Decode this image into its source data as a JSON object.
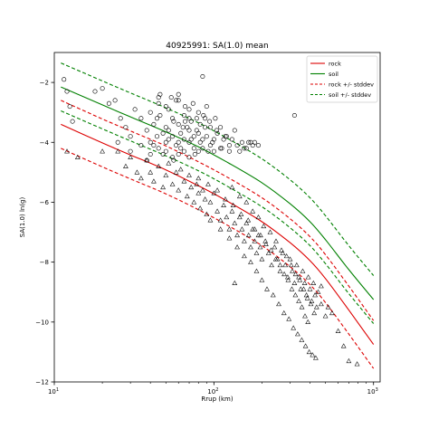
{
  "chart_data": {
    "type": "scatter",
    "title": "40925991: SA(1.0) mean",
    "xlabel": "Rrup (km)",
    "ylabel": "SA(1.0) ln(g)",
    "xscale": "log",
    "xlim": [
      10,
      1100
    ],
    "ylim": [
      -12,
      -1
    ],
    "x_ticks": [
      {
        "value": 10,
        "label": "10"
      },
      {
        "value": 100,
        "label": "10"
      },
      {
        "value": 1000,
        "label": "10"
      }
    ],
    "x_tick_exponents": [
      "1",
      "2",
      "3"
    ],
    "y_ticks": [
      {
        "value": -2,
        "label": "−2"
      },
      {
        "value": -4,
        "label": "−4"
      },
      {
        "value": -6,
        "label": "−6"
      },
      {
        "value": -8,
        "label": "−8"
      },
      {
        "value": -10,
        "label": "−10"
      },
      {
        "value": -12,
        "label": "−12"
      }
    ],
    "grid": false,
    "legend_position": "top-right",
    "legend": [
      {
        "label": "rock",
        "color": "#dd0000",
        "dash": false
      },
      {
        "label": "soil",
        "color": "#008000",
        "dash": false
      },
      {
        "label": "rock +/- stddev",
        "color": "#dd0000",
        "dash": true
      },
      {
        "label": "soil +/- stddev",
        "color": "#008000",
        "dash": true
      }
    ],
    "lines": [
      {
        "name": "rock",
        "color": "#dd0000",
        "dash": false,
        "x": [
          11,
          20,
          30,
          50,
          80,
          120,
          200,
          300,
          400,
          500,
          700,
          1000
        ],
        "y": [
          -3.4,
          -4.02,
          -4.42,
          -4.92,
          -5.45,
          -5.95,
          -6.65,
          -7.35,
          -7.95,
          -8.55,
          -9.6,
          -10.75
        ]
      },
      {
        "name": "rock +stddev",
        "color": "#dd0000",
        "dash": true,
        "x": [
          11,
          20,
          30,
          50,
          80,
          120,
          200,
          300,
          400,
          500,
          700,
          1000
        ],
        "y": [
          -2.6,
          -3.22,
          -3.62,
          -4.12,
          -4.65,
          -5.15,
          -5.85,
          -6.55,
          -7.15,
          -7.75,
          -8.8,
          -9.95
        ]
      },
      {
        "name": "rock -stddev",
        "color": "#dd0000",
        "dash": true,
        "x": [
          11,
          20,
          30,
          50,
          80,
          120,
          200,
          300,
          400,
          500,
          700,
          1000
        ],
        "y": [
          -4.2,
          -4.82,
          -5.22,
          -5.72,
          -6.25,
          -6.75,
          -7.45,
          -8.15,
          -8.75,
          -9.35,
          -10.4,
          -11.55
        ]
      },
      {
        "name": "soil",
        "color": "#008000",
        "dash": false,
        "x": [
          11,
          20,
          30,
          50,
          80,
          120,
          200,
          300,
          400,
          500,
          700,
          1000
        ],
        "y": [
          -2.15,
          -2.75,
          -3.15,
          -3.65,
          -4.15,
          -4.65,
          -5.35,
          -6.05,
          -6.65,
          -7.25,
          -8.25,
          -9.25
        ]
      },
      {
        "name": "soil +stddev",
        "color": "#008000",
        "dash": true,
        "x": [
          11,
          20,
          30,
          50,
          80,
          120,
          200,
          300,
          400,
          500,
          700,
          1000
        ],
        "y": [
          -1.35,
          -1.95,
          -2.35,
          -2.85,
          -3.35,
          -3.85,
          -4.55,
          -5.25,
          -5.85,
          -6.45,
          -7.45,
          -8.45
        ]
      },
      {
        "name": "soil -stddev",
        "color": "#008000",
        "dash": true,
        "x": [
          11,
          20,
          30,
          50,
          80,
          120,
          200,
          300,
          400,
          500,
          700,
          1000
        ],
        "y": [
          -2.95,
          -3.55,
          -3.95,
          -4.45,
          -4.95,
          -5.45,
          -6.15,
          -6.85,
          -7.45,
          -8.05,
          -9.05,
          -10.05
        ]
      }
    ],
    "circles": {
      "x": [
        11.5,
        12,
        12.5,
        13,
        18,
        20,
        22,
        24,
        25,
        26,
        28,
        30,
        30,
        32,
        35,
        35,
        38,
        40,
        40,
        40,
        42,
        44,
        45,
        45,
        46,
        48,
        50,
        50,
        50,
        52,
        55,
        55,
        55,
        58,
        60,
        60,
        60,
        60,
        62,
        65,
        65,
        65,
        68,
        70,
        70,
        70,
        70,
        72,
        75,
        75,
        78,
        80,
        80,
        80,
        82,
        85,
        85,
        88,
        90,
        90,
        95,
        95,
        100,
        100,
        105,
        110,
        110,
        115,
        120,
        125,
        130,
        140,
        150,
        160,
        170,
        175,
        180,
        190,
        85,
        320,
        38,
        42,
        48,
        52,
        56,
        62,
        66,
        72,
        76,
        82,
        88,
        92,
        98,
        104,
        112,
        118,
        125,
        135,
        145,
        155,
        165,
        44,
        50,
        56,
        64,
        70,
        78,
        86,
        94,
        102,
        45,
        52,
        58,
        66,
        74,
        46,
        54,
        60
      ],
      "y": [
        -1.9,
        -2.3,
        -2.8,
        -3.3,
        -2.3,
        -2.2,
        -2.7,
        -2.6,
        -4.0,
        -3.2,
        -3.5,
        -4.3,
        -3.8,
        -2.9,
        -3.2,
        -4.1,
        -3.6,
        -3.0,
        -4.0,
        -4.4,
        -3.4,
        -3.8,
        -2.5,
        -4.2,
        -3.1,
        -3.7,
        -2.8,
        -3.5,
        -4.3,
        -3.9,
        -3.2,
        -3.8,
        -4.5,
        -4.1,
        -2.6,
        -3.4,
        -4.0,
        -4.4,
        -3.7,
        -3.1,
        -3.9,
        -4.3,
        -3.5,
        -2.9,
        -3.6,
        -4.0,
        -4.5,
        -3.3,
        -3.8,
        -4.2,
        -3.6,
        -3.0,
        -3.7,
        -4.3,
        -3.4,
        -3.9,
        -4.2,
        -3.5,
        -2.8,
        -3.8,
        -3.5,
        -4.1,
        -3.9,
        -4.3,
        -3.7,
        -3.5,
        -4.2,
        -3.9,
        -3.8,
        -4.1,
        -3.9,
        -4.1,
        -4.0,
        -4.2,
        -4.0,
        -4.1,
        -4.0,
        -4.1,
        -1.8,
        -3.1,
        -4.6,
        -4.1,
        -4.4,
        -3.6,
        -4.6,
        -4.2,
        -3.3,
        -3.9,
        -4.4,
        -4.0,
        -3.2,
        -4.3,
        -4.0,
        -3.6,
        -4.2,
        -3.8,
        -4.3,
        -3.6,
        -4.3,
        -4.2,
        -4.0,
        -3.2,
        -4.0,
        -3.3,
        -3.5,
        -3.2,
        -3.2,
        -3.1,
        -3.3,
        -3.2,
        -2.7,
        -2.9,
        -2.6,
        -2.8,
        -2.7,
        -2.4,
        -2.5,
        -2.4
      ]
    },
    "triangles": {
      "x": [
        12,
        14,
        20,
        25,
        28,
        30,
        33,
        35,
        38,
        40,
        42,
        45,
        48,
        50,
        52,
        55,
        58,
        60,
        62,
        65,
        68,
        70,
        72,
        75,
        78,
        80,
        82,
        85,
        88,
        90,
        95,
        100,
        105,
        110,
        115,
        120,
        125,
        130,
        135,
        140,
        145,
        150,
        155,
        160,
        165,
        170,
        175,
        180,
        185,
        190,
        195,
        200,
        210,
        220,
        230,
        240,
        250,
        260,
        270,
        280,
        290,
        300,
        310,
        320,
        330,
        340,
        350,
        360,
        370,
        380,
        390,
        400,
        410,
        420,
        430,
        440,
        450,
        470,
        500,
        520,
        550,
        600,
        650,
        700,
        790,
        130,
        145,
        160,
        175,
        190,
        205,
        225,
        245,
        265,
        285,
        305,
        325,
        345,
        365,
        385,
        405,
        425,
        95,
        110,
        125,
        140,
        155,
        170,
        185,
        200,
        215,
        235,
        255,
        275,
        295,
        315,
        335,
        355,
        375,
        395,
        415,
        435,
        80,
        92,
        105,
        118,
        132,
        148,
        164,
        180,
        196,
        212,
        228,
        244,
        260,
        276,
        292,
        308,
        324,
        340,
        356,
        372,
        388,
        135,
        470
      ],
      "y": [
        -4.3,
        -4.5,
        -4.3,
        -4.3,
        -4.8,
        -4.5,
        -5.0,
        -5.2,
        -4.6,
        -5.0,
        -5.3,
        -4.8,
        -5.5,
        -5.1,
        -4.7,
        -5.4,
        -5.0,
        -5.6,
        -4.9,
        -5.3,
        -5.8,
        -5.1,
        -5.5,
        -6.0,
        -5.4,
        -5.7,
        -6.2,
        -5.6,
        -5.9,
        -6.4,
        -6.0,
        -5.7,
        -6.3,
        -6.6,
        -6.1,
        -6.5,
        -6.9,
        -6.3,
        -6.7,
        -7.1,
        -6.5,
        -6.9,
        -7.3,
        -6.7,
        -7.1,
        -7.5,
        -6.9,
        -7.3,
        -7.7,
        -7.1,
        -7.5,
        -7.9,
        -7.3,
        -7.7,
        -8.1,
        -7.5,
        -7.9,
        -8.3,
        -7.7,
        -8.1,
        -8.5,
        -7.9,
        -8.3,
        -8.7,
        -8.1,
        -8.5,
        -8.9,
        -8.3,
        -8.7,
        -9.1,
        -8.5,
        -8.9,
        -9.3,
        -8.7,
        -9.1,
        -9.5,
        -9.0,
        -9.4,
        -9.8,
        -9.5,
        -9.7,
        -10.3,
        -10.8,
        -11.3,
        -11.4,
        -5.5,
        -5.8,
        -6.0,
        -6.3,
        -6.5,
        -6.8,
        -7.0,
        -7.3,
        -7.6,
        -7.8,
        -8.1,
        -8.4,
        -8.6,
        -8.9,
        -9.2,
        -9.4,
        -9.7,
        -6.6,
        -6.9,
        -7.2,
        -7.5,
        -7.8,
        -8.0,
        -8.3,
        -8.6,
        -8.9,
        -9.1,
        -9.4,
        -9.7,
        -9.9,
        -10.2,
        -10.4,
        -10.6,
        -10.8,
        -11.0,
        -11.1,
        -11.2,
        -5.2,
        -5.4,
        -5.6,
        -5.9,
        -6.1,
        -6.4,
        -6.6,
        -6.9,
        -7.1,
        -7.4,
        -7.6,
        -7.9,
        -8.1,
        -8.4,
        -8.6,
        -8.9,
        -9.1,
        -9.3,
        -9.5,
        -9.8,
        -10.0,
        -8.7,
        -8.8
      ]
    }
  }
}
